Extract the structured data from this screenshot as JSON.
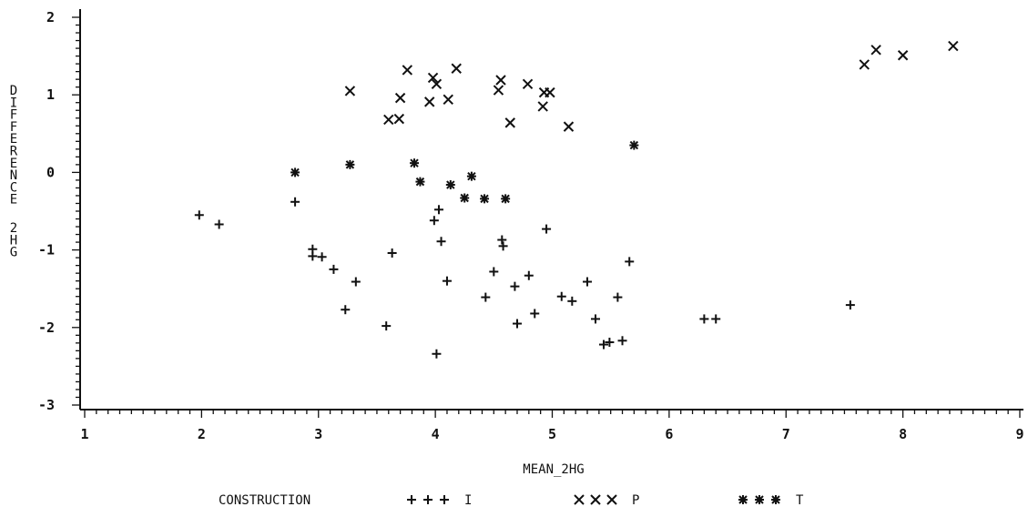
{
  "chart_data": {
    "type": "scatter",
    "title": "",
    "xlabel": "MEAN_2HG",
    "ylabel": "DIFFERENCE 2HG",
    "xlim": [
      1,
      9
    ],
    "ylim": [
      -3,
      2
    ],
    "x_ticks": [
      "1",
      "2",
      "3",
      "4",
      "5",
      "6",
      "7",
      "8",
      "9"
    ],
    "y_ticks": [
      "-3",
      "-2",
      "-1",
      "0",
      "1",
      "2"
    ],
    "grid": false,
    "legend": {
      "title": "CONSTRUCTION",
      "placement": "bottom",
      "entries": [
        {
          "label": "I",
          "marker": "plus"
        },
        {
          "label": "P",
          "marker": "x"
        },
        {
          "label": "T",
          "marker": "star"
        }
      ]
    },
    "series": [
      {
        "name": "I",
        "marker": "plus",
        "points": [
          [
            1.98,
            -0.55
          ],
          [
            2.15,
            -0.67
          ],
          [
            2.8,
            -0.38
          ],
          [
            2.95,
            -0.99
          ],
          [
            2.95,
            -1.08
          ],
          [
            3.03,
            -1.09
          ],
          [
            3.13,
            -1.25
          ],
          [
            3.23,
            -1.77
          ],
          [
            3.32,
            -1.41
          ],
          [
            3.58,
            -1.98
          ],
          [
            3.63,
            -1.04
          ],
          [
            3.99,
            -0.62
          ],
          [
            4.03,
            -0.48
          ],
          [
            4.05,
            -0.89
          ],
          [
            4.1,
            -1.4
          ],
          [
            4.01,
            -2.34
          ],
          [
            4.43,
            -1.61
          ],
          [
            4.5,
            -1.28
          ],
          [
            4.57,
            -0.87
          ],
          [
            4.58,
            -0.95
          ],
          [
            4.68,
            -1.47
          ],
          [
            4.7,
            -1.95
          ],
          [
            4.8,
            -1.33
          ],
          [
            4.85,
            -1.82
          ],
          [
            4.95,
            -0.73
          ],
          [
            5.08,
            -1.6
          ],
          [
            5.17,
            -1.66
          ],
          [
            5.3,
            -1.41
          ],
          [
            5.37,
            -1.89
          ],
          [
            5.44,
            -2.22
          ],
          [
            5.49,
            -2.19
          ],
          [
            5.56,
            -1.61
          ],
          [
            5.6,
            -2.17
          ],
          [
            5.66,
            -1.15
          ],
          [
            6.3,
            -1.89
          ],
          [
            6.4,
            -1.89
          ],
          [
            7.55,
            -1.71
          ]
        ]
      },
      {
        "name": "P",
        "marker": "x",
        "points": [
          [
            3.27,
            1.05
          ],
          [
            3.6,
            0.68
          ],
          [
            3.69,
            0.69
          ],
          [
            3.7,
            0.96
          ],
          [
            3.76,
            1.32
          ],
          [
            3.95,
            0.91
          ],
          [
            3.98,
            1.22
          ],
          [
            4.01,
            1.14
          ],
          [
            4.11,
            0.94
          ],
          [
            4.18,
            1.34
          ],
          [
            4.54,
            1.06
          ],
          [
            4.56,
            1.19
          ],
          [
            4.64,
            0.64
          ],
          [
            4.79,
            1.14
          ],
          [
            4.92,
            0.85
          ],
          [
            4.93,
            1.03
          ],
          [
            4.98,
            1.03
          ],
          [
            5.14,
            0.59
          ],
          [
            7.67,
            1.39
          ],
          [
            7.77,
            1.58
          ],
          [
            8.0,
            1.51
          ],
          [
            8.43,
            1.63
          ]
        ]
      },
      {
        "name": "T",
        "marker": "star",
        "points": [
          [
            2.8,
            0.0
          ],
          [
            3.27,
            0.1
          ],
          [
            3.82,
            0.12
          ],
          [
            3.87,
            -0.12
          ],
          [
            4.13,
            -0.16
          ],
          [
            4.25,
            -0.33
          ],
          [
            4.31,
            -0.05
          ],
          [
            4.42,
            -0.34
          ],
          [
            4.6,
            -0.34
          ],
          [
            5.7,
            0.35
          ]
        ]
      }
    ]
  }
}
